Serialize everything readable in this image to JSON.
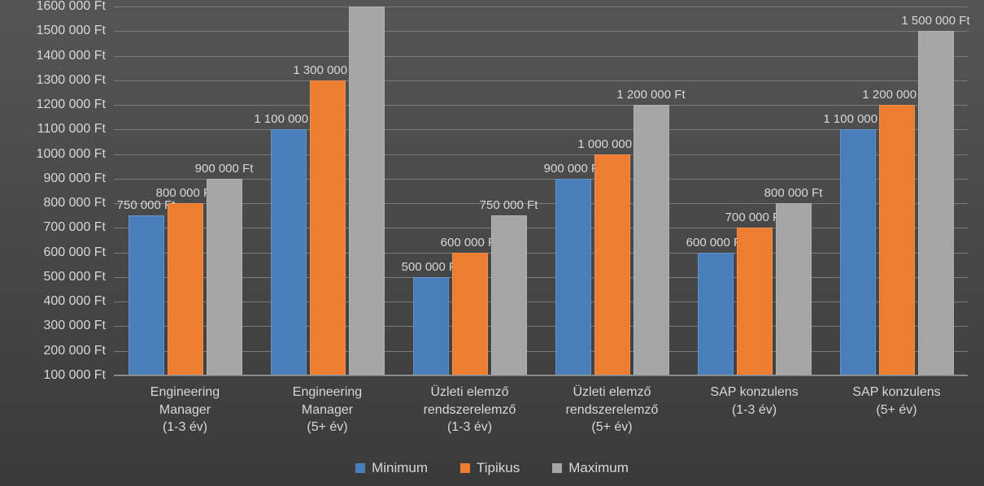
{
  "chart": {
    "type": "grouped-bar",
    "background_gradient": [
      "#555555",
      "#3a3a3a"
    ],
    "grid_color": "#7a7a7a",
    "text_color": "#d8d8d8",
    "axis_fontsize": 16,
    "datalabel_fontsize": 15,
    "legend_fontsize": 17,
    "y_axis": {
      "min": 100000,
      "max": 1600000,
      "step": 100000,
      "tick_labels": [
        "100 000 Ft",
        "200 000 Ft",
        "300 000 Ft",
        "400 000 Ft",
        "500 000 Ft",
        "600 000 Ft",
        "700 000 Ft",
        "800 000 Ft",
        "900 000 Ft",
        "1000 000 Ft",
        "1100 000 Ft",
        "1200 000 Ft",
        "1300 000 Ft",
        "1400 000 Ft",
        "1500 000 Ft",
        "1600 000 Ft"
      ]
    },
    "categories": [
      {
        "lines": [
          "Engineering",
          "Manager",
          "(1-3 év)"
        ]
      },
      {
        "lines": [
          "Engineering",
          "Manager",
          "(5+ év)"
        ]
      },
      {
        "lines": [
          "Üzleti elemző",
          "rendszerelemző",
          "(1-3 év)"
        ]
      },
      {
        "lines": [
          "Üzleti elemző",
          "rendszerelemző",
          "(5+ év)"
        ]
      },
      {
        "lines": [
          "SAP konzulens",
          "(1-3 év)"
        ]
      },
      {
        "lines": [
          "SAP konzulens",
          "(5+ év)"
        ]
      }
    ],
    "series": [
      {
        "name": "Minimum",
        "color": "#4a7ebb",
        "values": [
          750000,
          1100000,
          500000,
          900000,
          600000,
          1100000
        ]
      },
      {
        "name": "Tipikus",
        "color": "#ed7d31",
        "values": [
          800000,
          1300000,
          600000,
          1000000,
          700000,
          1200000
        ]
      },
      {
        "name": "Maximum",
        "color": "#a5a5a5",
        "values": [
          900000,
          1600000,
          750000,
          1200000,
          800000,
          1500000
        ]
      }
    ],
    "value_suffix": " Ft"
  }
}
